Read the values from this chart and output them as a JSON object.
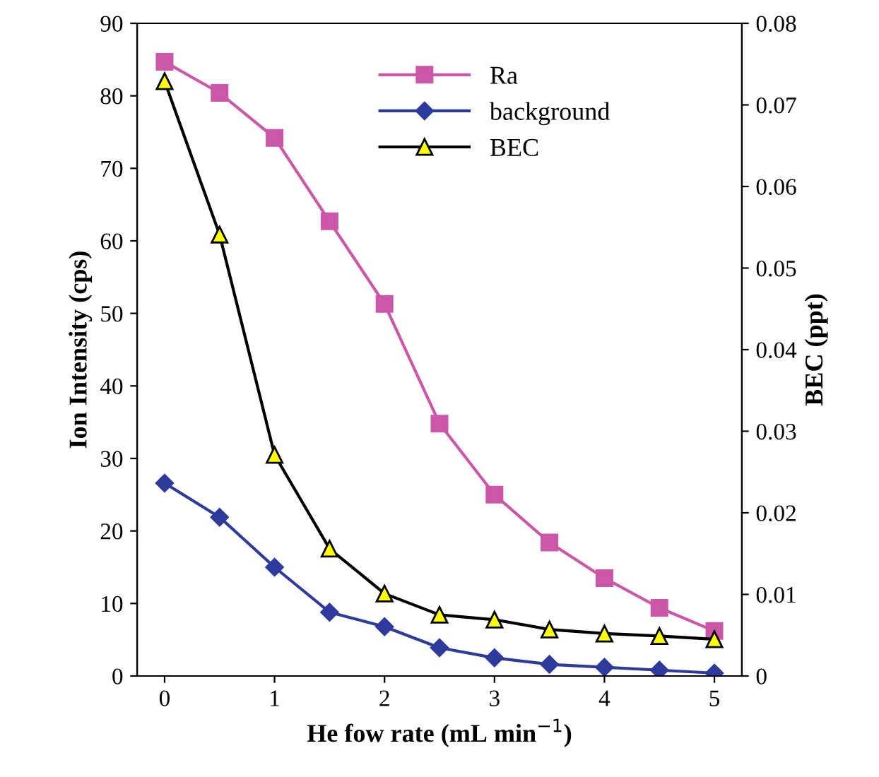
{
  "chart_data": {
    "type": "line",
    "xlabel": "He fow rate (mL min$^{−1}$)",
    "ylabel": "Ion Intensity (cps)",
    "y2label": "BEC (ppt)",
    "x": [
      0,
      0.5,
      1,
      1.5,
      2,
      2.5,
      3,
      3.5,
      4,
      4.5,
      5
    ],
    "series": [
      {
        "name": "Ra",
        "color": "#cc56a8",
        "marker": "square",
        "values": [
          84.7,
          80.4,
          74.2,
          62.7,
          51.3,
          34.8,
          25.0,
          18.4,
          13.5,
          9.4,
          6.2
        ]
      },
      {
        "name": "background",
        "color": "#2e3a9c",
        "marker": "diamond",
        "values": [
          26.6,
          21.9,
          15.0,
          8.8,
          6.8,
          3.9,
          2.5,
          1.6,
          1.2,
          0.8,
          0.4
        ]
      },
      {
        "name": "BEC",
        "color": "#000000",
        "marker": "triangle",
        "axis": "y2",
        "values": [
          0.0729,
          0.0541,
          0.0271,
          0.0156,
          0.0101,
          0.0075,
          0.0069,
          0.0057,
          0.0052,
          0.0049,
          0.0045
        ]
      }
    ],
    "xlim": [
      -0.25,
      5.25
    ],
    "xticks": [
      0,
      1,
      2,
      3,
      4,
      5
    ],
    "ylim": [
      0,
      90
    ],
    "yticks": [
      0,
      10,
      20,
      30,
      40,
      50,
      60,
      70,
      80,
      90
    ],
    "y2lim": [
      0,
      0.08
    ],
    "y2ticks": [
      {
        "value": 0,
        "label": "0"
      },
      0.01,
      0.02,
      0.03,
      0.04,
      0.05,
      0.06,
      0.07,
      0.08
    ],
    "grid": false,
    "legend": "top right"
  }
}
